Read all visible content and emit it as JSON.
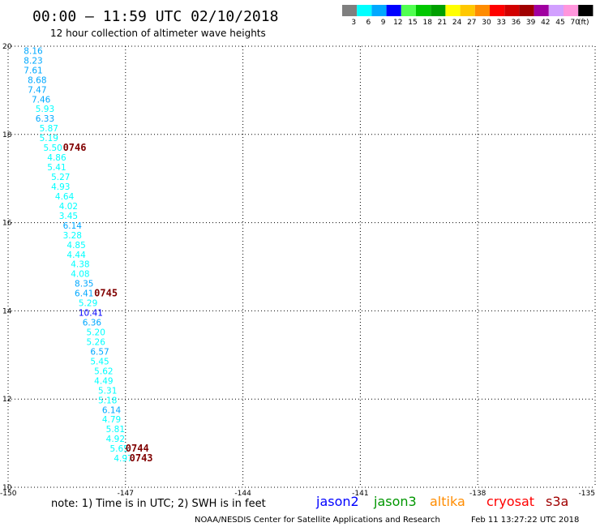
{
  "header": {
    "title": "00:00 – 11:59 UTC 02/10/2018",
    "subtitle": "12 hour collection of altimeter wave heights"
  },
  "color_scale": {
    "unit": "(ft)",
    "bins": [
      {
        "label": "3",
        "color": "#7f7f7f"
      },
      {
        "label": "6",
        "color": "#00ffff"
      },
      {
        "label": "9",
        "color": "#00a8ff"
      },
      {
        "label": "12",
        "color": "#0000ff"
      },
      {
        "label": "15",
        "color": "#50ff50"
      },
      {
        "label": "18",
        "color": "#00c800"
      },
      {
        "label": "21",
        "color": "#00a000"
      },
      {
        "label": "24",
        "color": "#ffff00"
      },
      {
        "label": "27",
        "color": "#ffc800"
      },
      {
        "label": "30",
        "color": "#ff8c00"
      },
      {
        "label": "33",
        "color": "#ff0000"
      },
      {
        "label": "36",
        "color": "#d20000"
      },
      {
        "label": "39",
        "color": "#a00000"
      },
      {
        "label": "42",
        "color": "#a000a0"
      },
      {
        "label": "45",
        "color": "#d2a0ff"
      },
      {
        "label": "70",
        "color": "#ff96dc"
      },
      {
        "label": "",
        "color": "#000000"
      }
    ]
  },
  "notes": {
    "note": "note: 1) Time is in UTC; 2) SWH is in feet",
    "credit": "NOAA/NESDIS Center for Satellite Applications and Research",
    "generated": "Feb 11 13:27:22 UTC 2018"
  },
  "satellites": [
    {
      "name": "jason2",
      "color": "#0000ff"
    },
    {
      "name": "jason3",
      "color": "#009600"
    },
    {
      "name": "altika",
      "color": "#ff8c00"
    },
    {
      "name": "cryosat",
      "color": "#ff0000"
    },
    {
      "name": "s3a",
      "color": "#a00000"
    }
  ],
  "chart_data": {
    "type": "scatter",
    "title": "12 hour collection of altimeter wave heights",
    "xlim": [
      -150,
      -135
    ],
    "ylim": [
      10,
      20
    ],
    "x_ticks": [
      "-150",
      "-147",
      "-144",
      "-141",
      "-138",
      "-135"
    ],
    "y_ticks": [
      "20",
      "18",
      "16",
      "14",
      "12",
      "10"
    ],
    "grid": true,
    "series": [
      {
        "name": "jason3",
        "color": "#00ffff",
        "points": [
          {
            "x": -149.6,
            "y": 19.9,
            "v": "8.16"
          },
          {
            "x": -149.6,
            "y": 19.68,
            "v": "8.23"
          },
          {
            "x": -149.6,
            "y": 19.46,
            "v": "7.61"
          },
          {
            "x": -149.5,
            "y": 19.24,
            "v": "8.68"
          },
          {
            "x": -149.5,
            "y": 19.02,
            "v": "7.47"
          },
          {
            "x": -149.4,
            "y": 18.8,
            "v": "7.46"
          },
          {
            "x": -149.3,
            "y": 18.58,
            "v": "5.93"
          },
          {
            "x": -149.3,
            "y": 18.36,
            "v": "6.33"
          },
          {
            "x": -149.2,
            "y": 18.14,
            "v": "5.87"
          },
          {
            "x": -149.2,
            "y": 17.92,
            "v": "5.19"
          },
          {
            "x": -149.1,
            "y": 17.7,
            "v": "5.50"
          },
          {
            "x": -149.0,
            "y": 17.48,
            "v": "4.86"
          },
          {
            "x": -149.0,
            "y": 17.26,
            "v": "5.41"
          },
          {
            "x": -148.9,
            "y": 17.04,
            "v": "5.27"
          },
          {
            "x": -148.9,
            "y": 16.82,
            "v": "4.93"
          },
          {
            "x": -148.8,
            "y": 16.6,
            "v": "4.64"
          },
          {
            "x": -148.7,
            "y": 16.38,
            "v": "4.02"
          },
          {
            "x": -148.7,
            "y": 16.16,
            "v": "3.45"
          },
          {
            "x": -148.6,
            "y": 15.94,
            "v": "6.14"
          },
          {
            "x": -148.6,
            "y": 15.72,
            "v": "3.28"
          },
          {
            "x": -148.5,
            "y": 15.5,
            "v": "4.85"
          },
          {
            "x": -148.5,
            "y": 15.28,
            "v": "4.44"
          },
          {
            "x": -148.4,
            "y": 15.06,
            "v": "4.38"
          },
          {
            "x": -148.4,
            "y": 14.84,
            "v": "4.08"
          },
          {
            "x": -148.3,
            "y": 14.62,
            "v": "8.35"
          },
          {
            "x": -148.3,
            "y": 14.4,
            "v": "6.41"
          },
          {
            "x": -148.2,
            "y": 14.18,
            "v": "5.29"
          },
          {
            "x": -148.2,
            "y": 13.96,
            "v": "10.41"
          },
          {
            "x": -148.1,
            "y": 13.74,
            "v": "6.36"
          },
          {
            "x": -148.0,
            "y": 13.52,
            "v": "5.20"
          },
          {
            "x": -148.0,
            "y": 13.3,
            "v": "5.26"
          },
          {
            "x": -147.9,
            "y": 13.08,
            "v": "6.57"
          },
          {
            "x": -147.9,
            "y": 12.86,
            "v": "5.45"
          },
          {
            "x": -147.8,
            "y": 12.64,
            "v": "5.62"
          },
          {
            "x": -147.8,
            "y": 12.42,
            "v": "4.49"
          },
          {
            "x": -147.7,
            "y": 12.2,
            "v": "5.31"
          },
          {
            "x": -147.7,
            "y": 11.98,
            "v": "5.18"
          },
          {
            "x": -147.6,
            "y": 11.76,
            "v": "6.14"
          },
          {
            "x": -147.6,
            "y": 11.54,
            "v": "4.79"
          },
          {
            "x": -147.5,
            "y": 11.32,
            "v": "5.81"
          },
          {
            "x": -147.5,
            "y": 11.1,
            "v": "4.92"
          },
          {
            "x": -147.4,
            "y": 10.88,
            "v": "5.65"
          },
          {
            "x": -147.3,
            "y": 10.66,
            "v": "4.97"
          }
        ]
      }
    ],
    "time_labels": [
      {
        "text": "0746",
        "x": -148.6,
        "y": 17.7
      },
      {
        "text": "0745",
        "x": -147.8,
        "y": 14.4
      },
      {
        "text": "0744",
        "x": -147.0,
        "y": 10.88
      },
      {
        "text": "0743",
        "x": -146.9,
        "y": 10.66
      }
    ]
  }
}
